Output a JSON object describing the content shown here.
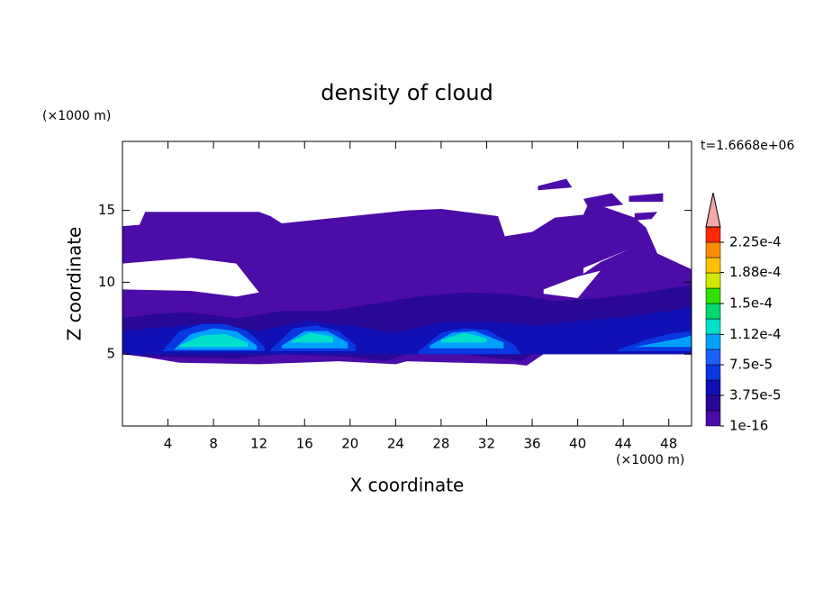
{
  "chart_data": {
    "type": "contour",
    "title": "density of cloud",
    "xlabel": "X coordinate",
    "ylabel": "Z coordinate",
    "xunit": "(×1000 m)",
    "yunit": "(×1000 m)",
    "time_label": "t=1.6668e+06",
    "xlim": [
      0,
      50
    ],
    "ylim": [
      0,
      19.8
    ],
    "xticks": [
      4,
      8,
      12,
      16,
      20,
      24,
      28,
      32,
      36,
      40,
      44,
      48
    ],
    "yticks": [
      5,
      10,
      15
    ],
    "levels": [
      1e-16,
      1.875e-05,
      3.75e-05,
      5.625e-05,
      7.5e-05,
      9.375e-05,
      0.0001125,
      0.00013125,
      0.00015,
      0.00016875,
      0.0001875,
      0.00020625,
      0.000225
    ],
    "colors": [
      "#4c0ca8",
      "#2a0896",
      "#1010b4",
      "#0838e0",
      "#1c60f8",
      "#00a0ff",
      "#00e0c8",
      "#00d870",
      "#30e000",
      "#d0e800",
      "#ffc000",
      "#ff8c00",
      "#ff2800"
    ],
    "extend_color": "#f4a8a8",
    "colorbar_ticks": [
      {
        "value": 1e-16,
        "label": "1e-16"
      },
      {
        "value": 3.75e-05,
        "label": "3.75e-5"
      },
      {
        "value": 7.5e-05,
        "label": "7.5e-5"
      },
      {
        "value": 0.000112,
        "label": "1.12e-4"
      },
      {
        "value": 0.00015,
        "label": "1.5e-4"
      },
      {
        "value": 0.000188,
        "label": "1.88e-4"
      },
      {
        "value": 0.000225,
        "label": "2.25e-4"
      }
    ],
    "regions": [
      {
        "level": 0,
        "x": [
          0,
          1.5,
          2,
          12,
          13,
          14,
          25,
          28,
          33,
          33.6,
          36,
          38,
          40.5,
          41,
          45,
          46,
          47,
          50,
          50,
          43,
          37,
          35.5,
          34.5,
          25,
          24,
          19,
          12,
          5,
          2,
          0
        ],
        "z": [
          13.9,
          14,
          14.9,
          14.9,
          14.6,
          14.1,
          15,
          15.1,
          14.6,
          13.2,
          13.5,
          14.5,
          14.7,
          15.6,
          14.5,
          13.8,
          12,
          10.9,
          5,
          5,
          5,
          4.2,
          4.3,
          4.5,
          4.3,
          4.5,
          4.3,
          4.4,
          4.8,
          5
        ],
        "holes": [
          {
            "x": [
              0,
              6,
              10,
              12,
              10,
              6,
              0
            ],
            "z": [
              11.3,
              11.7,
              11.3,
              9.3,
              9.0,
              9.4,
              9.5
            ]
          },
          {
            "x": [
              37,
              40,
              42,
              40,
              37
            ],
            "z": [
              9.5,
              10.4,
              10.8,
              8.9,
              9.2
            ]
          },
          {
            "x": [
              40.5,
              43,
              44.5,
              42,
              40.5
            ],
            "z": [
              11.0,
              11.8,
              12.3,
              11.4,
              10.6
            ]
          },
          {
            "x": [
              24.5,
              26.5,
              26.3,
              24.5
            ],
            "z": [
              7.4,
              7.3,
              6.2,
              6.4
            ]
          }
        ]
      },
      {
        "level": 0,
        "x": [
          36.5,
          39,
          39.5,
          36.5
        ],
        "z": [
          16.7,
          17.2,
          16.6,
          16.4
        ]
      },
      {
        "level": 0,
        "x": [
          44.5,
          47.5,
          47.5,
          44.5
        ],
        "z": [
          16.0,
          16.2,
          15.6,
          15.6
        ]
      },
      {
        "level": 0,
        "x": [
          40.5,
          43,
          44,
          41
        ],
        "z": [
          15.8,
          16.2,
          15.4,
          15.1
        ]
      },
      {
        "level": 0,
        "x": [
          45,
          47,
          46.5,
          45
        ],
        "z": [
          14.8,
          14.9,
          14.4,
          14.3
        ]
      },
      {
        "level": 1,
        "x": [
          0,
          3,
          6,
          10,
          14,
          18,
          22,
          26,
          30,
          34,
          38,
          42,
          46,
          50,
          50,
          45,
          40,
          36,
          35,
          30,
          25,
          23,
          20,
          14,
          10,
          3,
          0
        ],
        "z": [
          7.5,
          7.8,
          7.9,
          7.5,
          8,
          8,
          8.5,
          9,
          9.3,
          9.2,
          8.7,
          8.9,
          9.3,
          9.8,
          5,
          5,
          5,
          5,
          4.5,
          5,
          5,
          4.5,
          4.8,
          5,
          4.7,
          4.8,
          5
        ]
      },
      {
        "level": 2,
        "x": [
          0,
          4,
          8,
          12,
          16,
          20,
          24,
          28,
          32,
          36,
          40,
          44,
          48,
          50,
          50,
          0
        ],
        "z": [
          6.6,
          6.9,
          7.2,
          6.6,
          7.3,
          7.0,
          6.5,
          7.2,
          7.3,
          7.0,
          7.3,
          7.6,
          8.0,
          8.3,
          5,
          5
        ]
      },
      {
        "level": 3,
        "x": [
          3.5,
          5,
          7,
          9,
          11,
          12.5,
          12.5,
          3.5
        ],
        "z": [
          5.2,
          6.6,
          7.1,
          7.1,
          6.6,
          5.5,
          5.2,
          5.2
        ]
      },
      {
        "level": 3,
        "x": [
          13,
          15,
          17,
          19,
          20.5,
          20.5,
          13
        ],
        "z": [
          5.3,
          6.8,
          7.0,
          6.6,
          5.6,
          5.2,
          5.2
        ]
      },
      {
        "level": 3,
        "x": [
          26,
          28,
          30,
          32,
          34.5,
          35,
          26
        ],
        "z": [
          5.2,
          6.5,
          6.8,
          6.7,
          5.6,
          5.0,
          5.0
        ]
      },
      {
        "level": 3,
        "x": [
          43.5,
          46,
          48,
          50,
          50,
          43.5
        ],
        "z": [
          5.3,
          6.0,
          6.4,
          6.6,
          5.2,
          5.2
        ]
      },
      {
        "level": 5,
        "x": [
          4.5,
          6,
          8,
          10,
          11.8,
          11.8,
          4.5
        ],
        "z": [
          5.3,
          6.4,
          6.8,
          6.6,
          5.6,
          5.3,
          5.3
        ]
      },
      {
        "level": 5,
        "x": [
          14,
          16,
          18,
          19.8,
          19.8,
          14
        ],
        "z": [
          5.6,
          6.6,
          6.6,
          5.8,
          5.4,
          5.4
        ]
      },
      {
        "level": 5,
        "x": [
          27,
          29,
          31,
          33.5,
          33.5,
          27
        ],
        "z": [
          5.6,
          6.5,
          6.6,
          5.8,
          5.4,
          5.4
        ]
      },
      {
        "level": 5,
        "x": [
          45,
          47,
          49,
          50,
          50,
          45
        ],
        "z": [
          5.5,
          5.8,
          6.1,
          6.3,
          5.5,
          5.5
        ]
      },
      {
        "level": 6,
        "x": [
          5,
          7,
          9,
          11,
          11,
          5
        ],
        "z": [
          5.6,
          6.3,
          6.4,
          5.8,
          5.5,
          5.5
        ]
      },
      {
        "level": 6,
        "x": [
          14.8,
          16.5,
          18.5,
          18.5,
          14.8
        ],
        "z": [
          5.9,
          6.5,
          6.2,
          5.8,
          5.8
        ]
      },
      {
        "level": 6,
        "x": [
          28,
          30,
          32,
          32,
          28
        ],
        "z": [
          6.0,
          6.5,
          6.1,
          5.8,
          5.8
        ]
      }
    ]
  }
}
